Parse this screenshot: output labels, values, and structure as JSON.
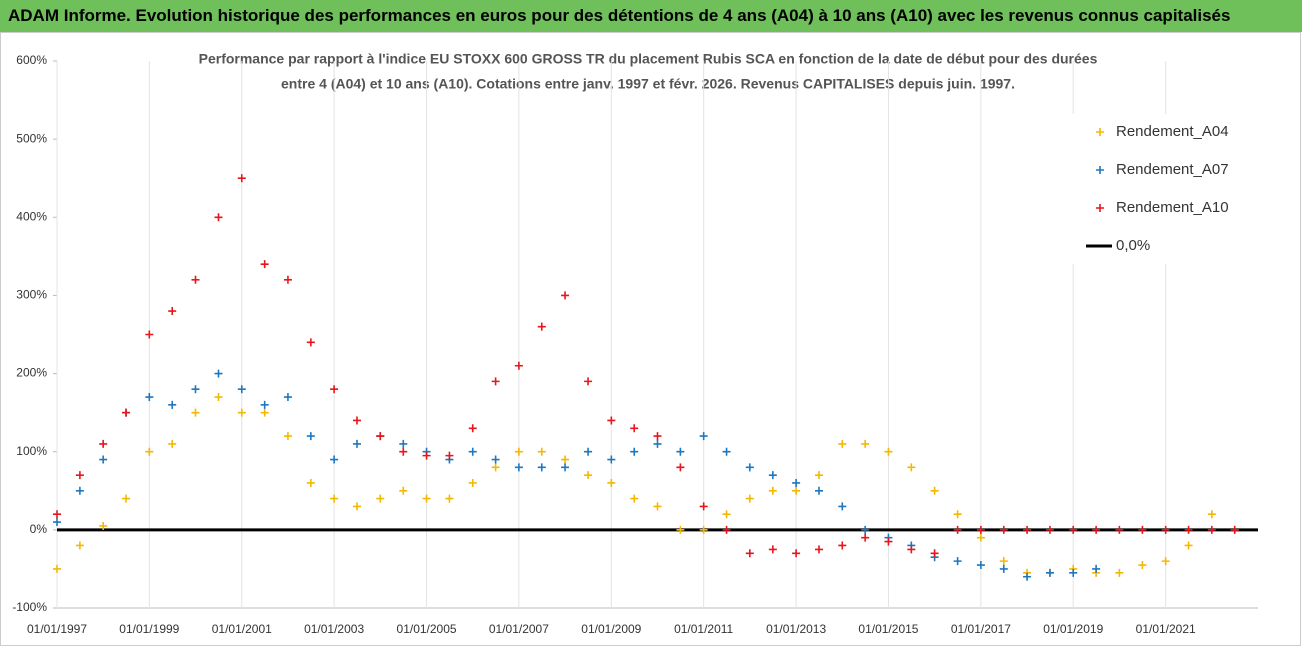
{
  "header": {
    "title": "ADAM Informe. Evolution historique des performances en euros pour des détentions de 4 ans (A04) à 10 ans (A10) avec les revenus connus capitalisés"
  },
  "chart_data": {
    "type": "scatter",
    "title": [
      "Performance par rapport à l'indice EU STOXX 600 GROSS TR  du placement Rubis SCA en fonction de la date de début pour des durées",
      "entre 4 (A04) et 10 ans (A10).  Cotations entre janv. 1997 et févr. 2026. Revenus CAPITALISES depuis juin. 1997."
    ],
    "x": [
      "01/01/1997",
      "01/07/1997",
      "01/01/1998",
      "01/07/1998",
      "01/01/1999",
      "01/07/1999",
      "01/01/2000",
      "01/07/2000",
      "01/01/2001",
      "01/07/2001",
      "01/01/2002",
      "01/07/2002",
      "01/01/2003",
      "01/07/2003",
      "01/01/2004",
      "01/07/2004",
      "01/01/2005",
      "01/07/2005",
      "01/01/2006",
      "01/07/2006",
      "01/01/2007",
      "01/07/2007",
      "01/01/2008",
      "01/07/2008",
      "01/01/2009",
      "01/07/2009",
      "01/01/2010",
      "01/07/2010",
      "01/01/2011",
      "01/07/2011",
      "01/01/2012",
      "01/07/2012",
      "01/01/2013",
      "01/07/2013",
      "01/01/2014",
      "01/07/2014",
      "01/01/2015",
      "01/07/2015",
      "01/01/2016",
      "01/07/2016",
      "01/01/2017",
      "01/07/2017",
      "01/01/2018",
      "01/07/2018",
      "01/01/2019",
      "01/07/2019",
      "01/01/2020",
      "01/07/2020",
      "01/01/2021",
      "01/07/2021",
      "01/01/2022",
      "01/07/2022"
    ],
    "series": [
      {
        "name": "Rendement_A04",
        "color": "#f5b800",
        "values": [
          -50,
          -20,
          5,
          40,
          100,
          110,
          150,
          170,
          150,
          150,
          120,
          60,
          40,
          30,
          40,
          50,
          40,
          40,
          60,
          80,
          100,
          100,
          90,
          70,
          60,
          40,
          30,
          0,
          0,
          20,
          40,
          50,
          50,
          70,
          110,
          110,
          100,
          80,
          50,
          20,
          -10,
          -40,
          -55,
          -55,
          -50,
          -55,
          -55,
          -45,
          -40,
          -20,
          20,
          0
        ]
      },
      {
        "name": "Rendement_A07",
        "color": "#1f77c0",
        "values": [
          10,
          50,
          90,
          150,
          170,
          160,
          180,
          200,
          180,
          160,
          170,
          120,
          90,
          110,
          120,
          110,
          100,
          90,
          100,
          90,
          80,
          80,
          80,
          100,
          90,
          100,
          110,
          100,
          120,
          100,
          80,
          70,
          60,
          50,
          30,
          0,
          -10,
          -20,
          -35,
          -40,
          -45,
          -50,
          -60,
          -55,
          -55,
          -50,
          null,
          null,
          null,
          null,
          null,
          null
        ]
      },
      {
        "name": "Rendement_A10",
        "color": "#e8151b",
        "values": [
          20,
          70,
          110,
          150,
          250,
          280,
          320,
          400,
          450,
          340,
          320,
          240,
          180,
          140,
          120,
          100,
          95,
          95,
          130,
          190,
          210,
          260,
          300,
          190,
          140,
          130,
          120,
          80,
          30,
          0,
          -30,
          -25,
          -30,
          -25,
          -20,
          -10,
          -15,
          -25,
          -30,
          0,
          0,
          0,
          0,
          0,
          0,
          0,
          0,
          0,
          0,
          0,
          0,
          0
        ]
      }
    ],
    "reference_line": {
      "name": "0,0%",
      "value": 0,
      "color": "#000000"
    },
    "xlim": [
      "01/01/1997",
      "01/01/2023"
    ],
    "xticks": [
      "01/01/1997",
      "01/01/1999",
      "01/01/2001",
      "01/01/2003",
      "01/01/2005",
      "01/01/2007",
      "01/01/2009",
      "01/01/2011",
      "01/01/2013",
      "01/01/2015",
      "01/01/2017",
      "01/01/2019",
      "01/01/2021"
    ],
    "ylim": [
      -100,
      600
    ],
    "yticks": [
      {
        "value": -100,
        "label": "-100%"
      },
      {
        "value": 0,
        "label": "0%"
      },
      {
        "value": 100,
        "label": "100%"
      },
      {
        "value": 200,
        "label": "200%"
      },
      {
        "value": 300,
        "label": "300%"
      },
      {
        "value": 400,
        "label": "400%"
      },
      {
        "value": 500,
        "label": "500%"
      },
      {
        "value": 600,
        "label": "600%"
      }
    ],
    "grid": "x",
    "legend": "top-right"
  }
}
